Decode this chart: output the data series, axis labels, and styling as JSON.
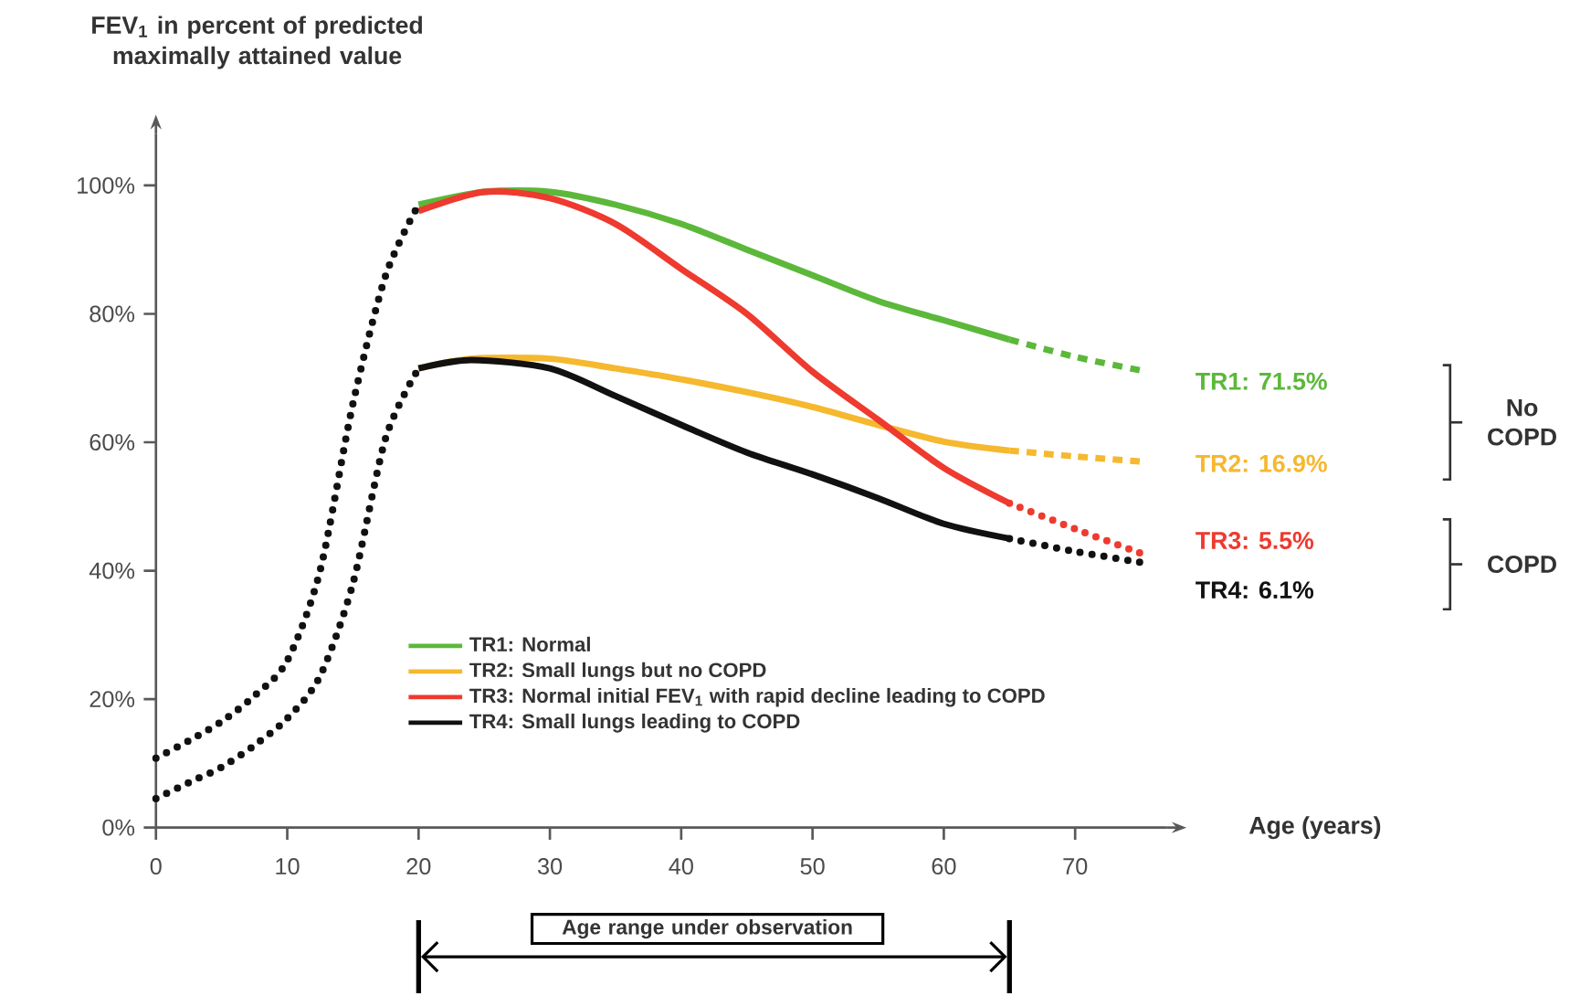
{
  "chart_data": {
    "type": "line",
    "ylabel": "FEV$_{1}$ in percent of predicted maximally attained value",
    "xlabel": "Age (years)",
    "xlim": [
      0,
      77
    ],
    "ylim": [
      0,
      108
    ],
    "xticks": [
      0,
      10,
      20,
      30,
      40,
      50,
      60,
      70
    ],
    "yticks": [
      {
        "value": 0,
        "label": "0%"
      },
      {
        "value": 20,
        "label": "20%"
      },
      {
        "value": 40,
        "label": "40%"
      },
      {
        "value": 60,
        "label": "60%"
      },
      {
        "value": 80,
        "label": "80%"
      },
      {
        "value": 100,
        "label": "100%"
      }
    ],
    "legend": "bottom",
    "series": [
      {
        "name": "TR1: Normal",
        "color": "#5cb83a",
        "line_style": "solid",
        "x": [
          20,
          25,
          30,
          35,
          40,
          45,
          50,
          55,
          60,
          65
        ],
        "values": [
          97,
          99,
          99,
          97,
          94,
          90,
          86,
          82,
          79,
          76
        ]
      },
      {
        "name": "TR2: Small lungs but no COPD",
        "color": "#f5b82e",
        "line_style": "solid",
        "x": [
          20,
          24,
          30,
          35,
          40,
          45,
          50,
          55,
          60,
          65
        ],
        "values": [
          71.5,
          73,
          73,
          71.5,
          69.8,
          67.8,
          65.5,
          62.7,
          60.1,
          58.7
        ]
      },
      {
        "name": "TR3: Normal initial FEV$_{1}$ with rapid decline leading to COPD",
        "color": "#ee3a2f",
        "line_style": "solid",
        "x": [
          20,
          25,
          30,
          35,
          40,
          45,
          50,
          55,
          60,
          65
        ],
        "values": [
          96,
          99,
          98,
          94,
          87,
          80,
          71,
          63.5,
          56,
          50.5
        ]
      },
      {
        "name": "TR4: Small lungs leading to COPD",
        "color": "#111111",
        "line_style": "solid",
        "x": [
          20,
          24,
          30,
          35,
          40,
          45,
          50,
          55,
          60,
          65
        ],
        "values": [
          71.5,
          72.8,
          71.5,
          67.2,
          62.7,
          58.4,
          55,
          51.3,
          47.3,
          45
        ]
      },
      {
        "color": "#5cb83a",
        "line_style": "dashed",
        "x": [
          65,
          70,
          75
        ],
        "values": [
          76,
          73.3,
          71.2
        ]
      },
      {
        "color": "#f5b82e",
        "line_style": "dashed",
        "x": [
          65,
          70,
          75
        ],
        "values": [
          58.7,
          57.8,
          57
        ]
      },
      {
        "color": "#ee3a2f",
        "line_style": "dotted",
        "x": [
          65,
          70,
          75
        ],
        "values": [
          50.5,
          46.5,
          42.7
        ]
      },
      {
        "color": "#111111",
        "line_style": "dotted",
        "x": [
          65,
          70,
          75
        ],
        "values": [
          45,
          43,
          41.3
        ]
      },
      {
        "color": "#111111",
        "line_style": "dotted",
        "x": [
          0,
          2.5,
          5,
          7.5,
          10,
          12.5,
          15,
          17.5,
          20
        ],
        "values": [
          10.8,
          13.5,
          16.5,
          20.5,
          26,
          40,
          66,
          86,
          97
        ]
      },
      {
        "color": "#111111",
        "line_style": "dotted",
        "x": [
          0,
          2.5,
          5,
          7.5,
          10,
          12.5,
          15,
          17.5,
          20
        ],
        "values": [
          4.5,
          7,
          9.4,
          12.8,
          17,
          23.6,
          38,
          60.7,
          71.5
        ]
      }
    ],
    "annotations": [
      "TR1: 71.5%",
      "TR2: 16.9%",
      "TR3: 5.5%",
      "TR4: 6.1%",
      "No COPD",
      "COPD",
      "Age range under observation"
    ]
  }
}
